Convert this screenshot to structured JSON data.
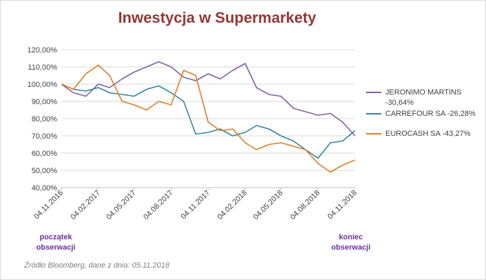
{
  "chart_data": {
    "type": "line",
    "title": "Inwestycja w Supermarkety",
    "xlabel": "",
    "ylabel": "",
    "x_start": "04.11.2016",
    "x_end": "04.11.2018",
    "x_ticks": [
      "04.11.2016",
      "04.02.2017",
      "04.05.2017",
      "04.08.2017",
      "04.11.2017",
      "04.02.2018",
      "04.05.2018",
      "04.08.2018",
      "04.11.2018"
    ],
    "y_ticks": [
      "40,00%",
      "50,00%",
      "60,00%",
      "70,00%",
      "80,00%",
      "90,00%",
      "100,00%",
      "110,00%",
      "120,00%"
    ],
    "ylim": [
      40,
      120
    ],
    "grid": "horizontal",
    "legend_position": "right",
    "series": [
      {
        "name": "JERONIMO MARTINS -30,64%",
        "color": "#7f5fa0",
        "x": [
          "04.11.2016",
          "04.12.2016",
          "04.01.2017",
          "04.02.2017",
          "04.03.2017",
          "04.04.2017",
          "04.05.2017",
          "04.06.2017",
          "04.07.2017",
          "04.08.2017",
          "04.09.2017",
          "04.10.2017",
          "04.11.2017",
          "04.12.2017",
          "04.01.2018",
          "04.02.2018",
          "04.03.2018",
          "04.04.2018",
          "04.05.2018",
          "04.06.2018",
          "04.07.2018",
          "04.08.2018",
          "04.09.2018",
          "04.10.2018",
          "04.11.2018"
        ],
        "y": [
          100,
          95,
          93,
          100,
          98,
          103,
          107,
          110,
          113,
          110,
          104,
          102,
          106,
          103,
          108,
          112,
          98,
          94,
          93,
          86,
          84,
          82,
          83,
          78,
          70
        ]
      },
      {
        "name": "CARREFOUR SA -26,28%",
        "color": "#31859c",
        "x": [
          "04.11.2016",
          "04.12.2016",
          "04.01.2017",
          "04.02.2017",
          "04.03.2017",
          "04.04.2017",
          "04.05.2017",
          "04.06.2017",
          "04.07.2017",
          "04.08.2017",
          "04.09.2017",
          "04.10.2017",
          "04.11.2017",
          "04.12.2017",
          "04.01.2018",
          "04.02.2018",
          "04.03.2018",
          "04.04.2018",
          "04.05.2018",
          "04.06.2018",
          "04.07.2018",
          "04.08.2018",
          "04.09.2018",
          "04.10.2018",
          "04.11.2018"
        ],
        "y": [
          100,
          97,
          96,
          98,
          95,
          94,
          93,
          97,
          99,
          95,
          90,
          71,
          72,
          74,
          70,
          72,
          76,
          74,
          70,
          67,
          62,
          57,
          66,
          67,
          73
        ]
      },
      {
        "name": "EUROCASH SA -43,27%",
        "color": "#e07b26",
        "x": [
          "04.11.2016",
          "04.12.2016",
          "04.01.2017",
          "04.02.2017",
          "04.03.2017",
          "04.04.2017",
          "04.05.2017",
          "04.06.2017",
          "04.07.2017",
          "04.08.2017",
          "04.09.2017",
          "04.10.2017",
          "04.11.2017",
          "04.12.2017",
          "04.01.2018",
          "04.02.2018",
          "04.03.2018",
          "04.04.2018",
          "04.05.2018",
          "04.06.2018",
          "04.07.2018",
          "04.08.2018",
          "04.09.2018",
          "04.10.2018",
          "04.11.2018"
        ],
        "y": [
          100,
          97,
          106,
          111,
          105,
          90,
          88,
          85,
          90,
          88,
          108,
          105,
          78,
          73,
          74,
          66,
          62,
          65,
          66,
          64,
          62,
          54,
          49,
          53,
          56
        ]
      }
    ]
  },
  "annotations": {
    "start_line1": "początek",
    "start_line2": "obserwacji",
    "end_line1": "koniec",
    "end_line2": "obserwacji"
  },
  "source": "Źródło Bloomberg, dane z dnia: 05.11.2018"
}
